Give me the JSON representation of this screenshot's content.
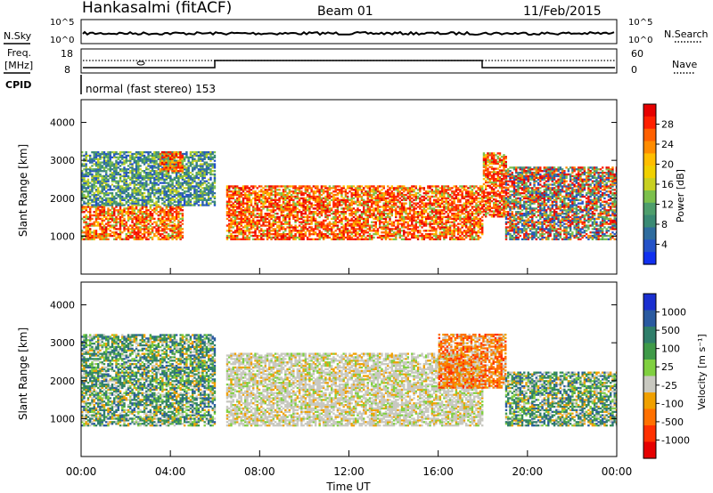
{
  "header": {
    "station": "Hankasalmi (fitACF)",
    "beam": "Beam 01",
    "date": "11/Feb/2015"
  },
  "left_labels": {
    "nsky": "N.Sky",
    "freq_line1": "Freq.",
    "freq_line2": "[MHz]",
    "cpid": "CPID"
  },
  "right_labels": {
    "nsearch": "N.Search",
    "nave": "Nave"
  },
  "noise_panel": {
    "ticks_left": [
      "10^5",
      "10^0"
    ],
    "ticks_right": [
      "10^5",
      "10^0"
    ]
  },
  "freq_panel": {
    "ticks_left": [
      "18",
      "8"
    ],
    "ticks_right": [
      "60",
      "0"
    ]
  },
  "cpid_text": "normal (fast stereo) 153",
  "chart_data": [
    {
      "type": "heatmap",
      "name": "power",
      "ylabel": "Slant Range [km]",
      "ylim": [
        0,
        4600
      ],
      "yticks": [
        "1000",
        "2000",
        "3000",
        "4000"
      ],
      "colorbar": {
        "label": "Power [dB]",
        "tick_labels": [
          "28",
          "24",
          "20",
          "16",
          "12",
          "8",
          "4"
        ],
        "colors": [
          "#e60000",
          "#ff2000",
          "#ff6000",
          "#ff8c00",
          "#ffbe00",
          "#f0d000",
          "#c8d020",
          "#7cc04c",
          "#4e9e6c",
          "#3a8a74",
          "#2f6c9e",
          "#2452c8",
          "#1030f0"
        ]
      },
      "echo_bands": [
        {
          "t": [
            0,
            4.5
          ],
          "r": [
            900,
            1800
          ],
          "level": "high"
        },
        {
          "t": [
            0,
            6
          ],
          "r": [
            1800,
            3200
          ],
          "level": "low"
        },
        {
          "t": [
            3.5,
            4.5
          ],
          "r": [
            2700,
            3200
          ],
          "level": "high"
        },
        {
          "t": [
            6.5,
            18
          ],
          "r": [
            900,
            2300
          ],
          "level": "high"
        },
        {
          "t": [
            18,
            19
          ],
          "r": [
            1500,
            3200
          ],
          "level": "high"
        },
        {
          "t": [
            19,
            24
          ],
          "r": [
            900,
            2800
          ],
          "level": "mixed"
        }
      ]
    },
    {
      "type": "heatmap",
      "name": "velocity",
      "ylabel": "Slant Range [km]",
      "ylim": [
        0,
        4600
      ],
      "yticks": [
        "1000",
        "2000",
        "3000",
        "4000"
      ],
      "xlabel": "Time UT",
      "xticks": [
        "00:00",
        "04:00",
        "08:00",
        "12:00",
        "16:00",
        "20:00",
        "00:00"
      ],
      "xlim": [
        0,
        24
      ],
      "colorbar": {
        "label": "Velocity [m s⁻¹]",
        "tick_labels": [
          "1000",
          "500",
          "100",
          "25",
          "-25",
          "-100",
          "-500",
          "-1000"
        ],
        "colors": [
          "#1a2fd0",
          "#2a5aa0",
          "#2f7e6a",
          "#3f9a48",
          "#80d040",
          "#c8c8c0",
          "#f0a000",
          "#ff7000",
          "#ff3000",
          "#e60000"
        ]
      },
      "echo_bands": [
        {
          "t": [
            0,
            6
          ],
          "r": [
            800,
            3200
          ],
          "level": "green"
        },
        {
          "t": [
            6.5,
            18
          ],
          "r": [
            800,
            2700
          ],
          "level": "grey"
        },
        {
          "t": [
            16,
            19
          ],
          "r": [
            1800,
            3200
          ],
          "level": "orange"
        },
        {
          "t": [
            19,
            24
          ],
          "r": [
            800,
            2200
          ],
          "level": "green"
        }
      ]
    }
  ]
}
